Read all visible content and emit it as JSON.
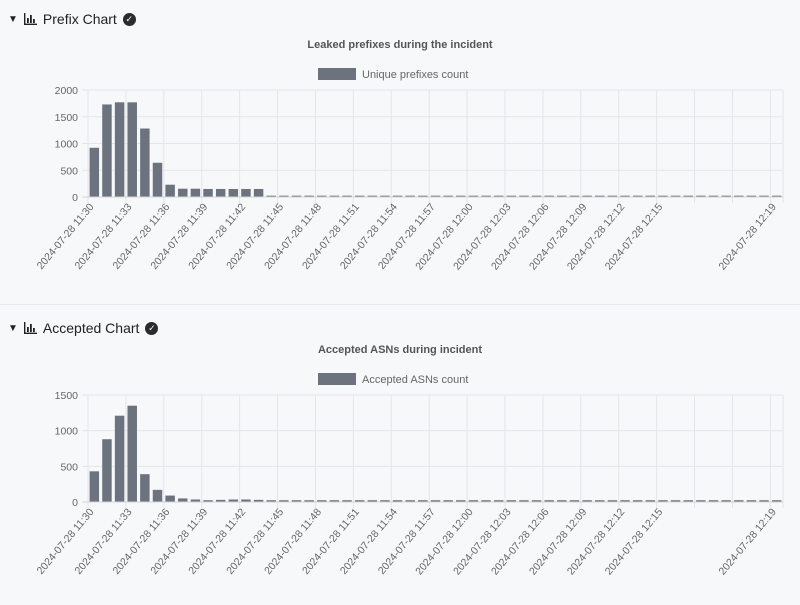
{
  "sections": [
    {
      "heading": "Prefix Chart",
      "icons": [
        "collapse-triangle-icon",
        "bar-chart-icon",
        "check-circle-icon"
      ]
    },
    {
      "heading": "Accepted Chart",
      "icons": [
        "collapse-triangle-icon",
        "bar-chart-icon",
        "check-circle-icon"
      ]
    }
  ],
  "colors": {
    "bar": "#6c737e",
    "grid": "#e3e5e8",
    "text": "#666666"
  },
  "chart_data": [
    {
      "type": "bar",
      "title": "Leaked prefixes during the incident",
      "legend": "top-center",
      "series": [
        {
          "name": "Unique prefixes count",
          "values": [
            920,
            1730,
            1770,
            1770,
            1280,
            640,
            230,
            155,
            155,
            150,
            150,
            150,
            150,
            150,
            25,
            25,
            25,
            25,
            25,
            25,
            25,
            25,
            25,
            25,
            25,
            25,
            25,
            25,
            25,
            25,
            25,
            25,
            25,
            25,
            25,
            25,
            25,
            25,
            25,
            25,
            25,
            25,
            25,
            25,
            25,
            25,
            25,
            25,
            25,
            25,
            25,
            25,
            25,
            25,
            25
          ]
        }
      ],
      "x_tick_labels": [
        "2024-07-28 11:30",
        "2024-07-28 11:33",
        "2024-07-28 11:36",
        "2024-07-28 11:39",
        "2024-07-28 11:42",
        "2024-07-28 11:45",
        "2024-07-28 11:48",
        "2024-07-28 11:51",
        "2024-07-28 11:54",
        "2024-07-28 11:57",
        "2024-07-28 12:00",
        "2024-07-28 12:03",
        "2024-07-28 12:06",
        "2024-07-28 12:09",
        "2024-07-28 12:12",
        "2024-07-28 12:15",
        "2024-07-28 12:19"
      ],
      "y_ticks": [
        0,
        500,
        1000,
        1500,
        2000
      ],
      "ylim": [
        0,
        2000
      ],
      "grid": true
    },
    {
      "type": "bar",
      "title": "Accepted ASNs during incident",
      "legend": "top-center",
      "series": [
        {
          "name": "Accepted ASNs count",
          "values": [
            430,
            880,
            1210,
            1350,
            390,
            170,
            90,
            50,
            35,
            25,
            30,
            35,
            35,
            30,
            25,
            25,
            25,
            25,
            25,
            25,
            25,
            25,
            25,
            25,
            25,
            25,
            25,
            25,
            25,
            25,
            25,
            25,
            25,
            25,
            25,
            25,
            25,
            25,
            25,
            25,
            25,
            25,
            25,
            25,
            25,
            25,
            25,
            25,
            25,
            25,
            25,
            25,
            25,
            25,
            25
          ]
        }
      ],
      "x_tick_labels": [
        "2024-07-28 11:30",
        "2024-07-28 11:33",
        "2024-07-28 11:36",
        "2024-07-28 11:39",
        "2024-07-28 11:42",
        "2024-07-28 11:45",
        "2024-07-28 11:48",
        "2024-07-28 11:51",
        "2024-07-28 11:54",
        "2024-07-28 11:57",
        "2024-07-28 12:00",
        "2024-07-28 12:03",
        "2024-07-28 12:06",
        "2024-07-28 12:09",
        "2024-07-28 12:12",
        "2024-07-28 12:15",
        "2024-07-28 12:19"
      ],
      "y_ticks": [
        0,
        500,
        1000,
        1500
      ],
      "ylim": [
        0,
        1500
      ],
      "grid": true
    }
  ]
}
